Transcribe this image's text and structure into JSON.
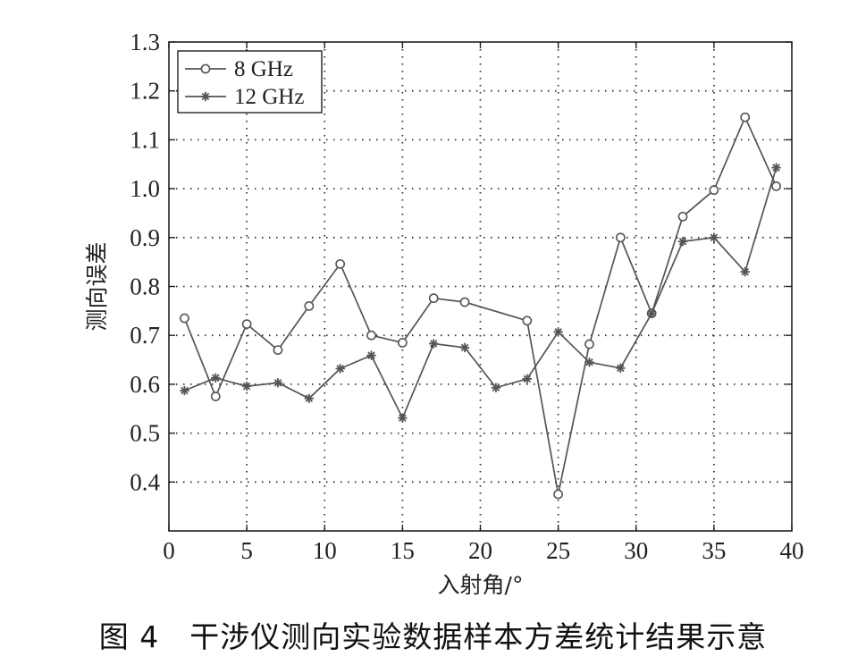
{
  "chart_data": {
    "type": "line",
    "xlabel": "入射角/°",
    "ylabel": "测向误差",
    "xlim": [
      0,
      40
    ],
    "ylim": [
      0.3,
      1.3
    ],
    "xticks": [
      0,
      5,
      10,
      15,
      20,
      25,
      30,
      35,
      40
    ],
    "yticks": [
      0.4,
      0.5,
      0.6,
      0.7,
      0.8,
      0.9,
      1.0,
      1.1,
      1.2,
      1.3
    ],
    "ytick_labels": [
      "0.4",
      "0.5",
      "0.6",
      "0.7",
      "0.8",
      "0.9",
      "1.0",
      "1.1",
      "1.2",
      "1.3"
    ],
    "grid": true,
    "grid_style": "dotted",
    "legend_position": "top-left",
    "series": [
      {
        "name": "8 GHz",
        "marker": "circle",
        "color": "#555555",
        "x": [
          1,
          3,
          5,
          7,
          9,
          11,
          13,
          15,
          17,
          19,
          23,
          25,
          27,
          29,
          31,
          33,
          35,
          37,
          39
        ],
        "y": [
          0.735,
          0.575,
          0.723,
          0.67,
          0.76,
          0.846,
          0.7,
          0.685,
          0.776,
          0.768,
          0.73,
          0.375,
          0.682,
          0.9,
          0.745,
          0.943,
          0.997,
          1.146,
          1.005
        ]
      },
      {
        "name": "12 GHz",
        "marker": "asterisk",
        "color": "#555555",
        "x": [
          1,
          3,
          5,
          7,
          9,
          11,
          13,
          15,
          17,
          19,
          21,
          23,
          25,
          27,
          29,
          31,
          33,
          35,
          37,
          39
        ],
        "y": [
          0.587,
          0.613,
          0.596,
          0.603,
          0.571,
          0.632,
          0.659,
          0.531,
          0.683,
          0.675,
          0.593,
          0.611,
          0.707,
          0.645,
          0.633,
          0.745,
          0.892,
          0.9,
          0.83,
          1.043
        ]
      }
    ]
  },
  "caption": {
    "figure_number": "图 4",
    "text": "干涉仪测向实验数据样本方差统计结果示意"
  }
}
